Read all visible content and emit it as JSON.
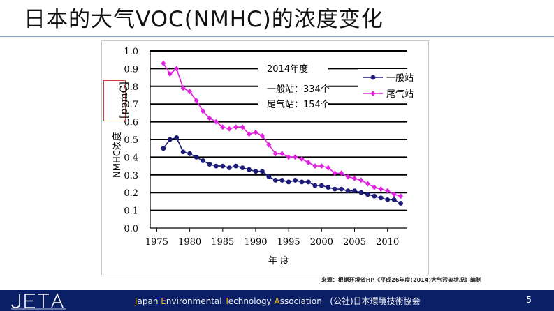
{
  "slide": {
    "title": "日本的大气VOC(NMHC)的浓度变化",
    "page_number": "5",
    "source_note": "来源：根据环境省HP《平成26年度(2014)大气污染状况》编制",
    "footer": {
      "org_initials": [
        "J",
        "E",
        "T",
        "A"
      ],
      "org_rest": [
        "apan ",
        "nvironmental ",
        "echnology ",
        "ssociation"
      ],
      "org_jp": "(公社)日本環境技術協会"
    }
  },
  "colors": {
    "series1": "#1c1c78",
    "series2": "#e022e0",
    "footer_bg": "#0b1f66",
    "accent": "#f2b600"
  },
  "chart_data": {
    "type": "line",
    "title": "2014年度",
    "annotations": [
      "一般站：334个",
      "尾气站：154个"
    ],
    "xlabel": "年  度",
    "ylabel": "NMHC浓度",
    "yunit": "[ppmC]",
    "xlim": [
      1974,
      2013
    ],
    "ylim": [
      0,
      1.0
    ],
    "xticks": [
      1975,
      1980,
      1985,
      1990,
      1995,
      2000,
      2005,
      2010
    ],
    "yticks": [
      0.0,
      0.1,
      0.2,
      0.3,
      0.4,
      0.5,
      0.6,
      0.7,
      0.8,
      0.9,
      1.0
    ],
    "ytick_labels": [
      "0.0",
      "0.1",
      "0.2",
      "0.3",
      "0.4",
      "0.5",
      "0.6",
      "0.7",
      "0.8",
      "0.9",
      "1.0"
    ],
    "grid": true,
    "legend_position": "top-right",
    "x": [
      1976,
      1977,
      1978,
      1979,
      1980,
      1981,
      1982,
      1983,
      1984,
      1985,
      1986,
      1987,
      1988,
      1989,
      1990,
      1991,
      1992,
      1993,
      1994,
      1995,
      1996,
      1997,
      1998,
      1999,
      2000,
      2001,
      2002,
      2003,
      2004,
      2005,
      2006,
      2007,
      2008,
      2009,
      2010,
      2011,
      2012
    ],
    "series": [
      {
        "name": "一般站",
        "marker": "circle",
        "values": [
          0.45,
          0.5,
          0.51,
          0.43,
          0.42,
          0.4,
          0.38,
          0.36,
          0.35,
          0.35,
          0.34,
          0.35,
          0.34,
          0.33,
          0.32,
          0.32,
          0.29,
          0.27,
          0.27,
          0.26,
          0.27,
          0.26,
          0.26,
          0.24,
          0.24,
          0.23,
          0.22,
          0.22,
          0.21,
          0.21,
          0.2,
          0.19,
          0.18,
          0.17,
          0.16,
          0.16,
          0.14
        ]
      },
      {
        "name": "尾气站",
        "marker": "diamond",
        "values": [
          0.93,
          0.87,
          0.9,
          0.79,
          0.77,
          0.72,
          0.66,
          0.62,
          0.6,
          0.57,
          0.56,
          0.57,
          0.57,
          0.53,
          0.54,
          0.52,
          0.47,
          0.42,
          0.42,
          0.4,
          0.4,
          0.39,
          0.37,
          0.35,
          0.35,
          0.34,
          0.31,
          0.31,
          0.29,
          0.28,
          0.27,
          0.25,
          0.23,
          0.22,
          0.21,
          0.19,
          0.18
        ]
      }
    ]
  }
}
